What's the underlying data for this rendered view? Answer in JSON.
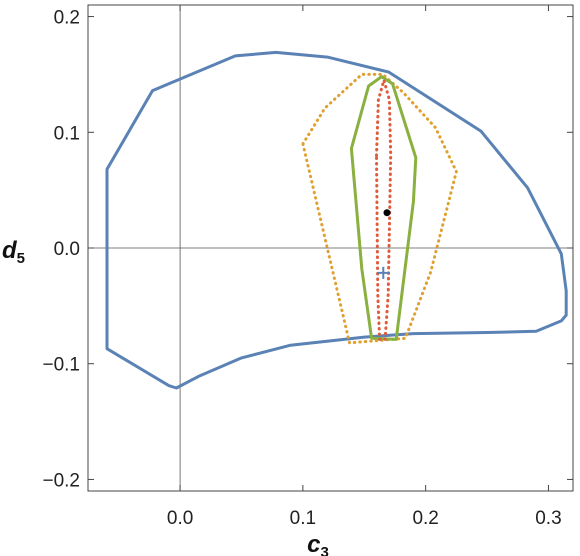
{
  "chart_data": {
    "type": "line",
    "title": "",
    "xlabel": "c",
    "xlabel_subscript": "3",
    "ylabel": "d",
    "ylabel_subscript": "5",
    "xlim": [
      -0.075,
      0.32
    ],
    "ylim": [
      -0.21,
      0.21
    ],
    "x_ticks": [
      0.0,
      0.1,
      0.2,
      0.3
    ],
    "x_tick_labels": [
      "0.0",
      "0.1",
      "0.2",
      "0.3"
    ],
    "y_ticks": [
      -0.2,
      -0.1,
      0.0,
      0.1,
      0.2
    ],
    "y_tick_labels": [
      "−0.2",
      "−0.1",
      "0.0",
      "0.1",
      "0.2"
    ],
    "grid": false,
    "legend": "none",
    "series": [
      {
        "style": "solid",
        "color": "#5a82b4",
        "closed": true,
        "points": [
          [
            -0.0595,
            0.068
          ],
          [
            -0.0225,
            0.136
          ],
          [
            0.045,
            0.166
          ],
          [
            0.078,
            0.169
          ],
          [
            0.12,
            0.165
          ],
          [
            0.17,
            0.152
          ],
          [
            0.245,
            0.101
          ],
          [
            0.283,
            0.052
          ],
          [
            0.3105,
            -0.005
          ],
          [
            0.3145,
            -0.037
          ],
          [
            0.3145,
            -0.058
          ],
          [
            0.3105,
            -0.063
          ],
          [
            0.29,
            -0.072
          ],
          [
            0.25,
            -0.073
          ],
          [
            0.19,
            -0.074
          ],
          [
            0.15,
            -0.077
          ],
          [
            0.09,
            -0.084
          ],
          [
            0.05,
            -0.095
          ],
          [
            0.015,
            -0.111
          ],
          [
            -0.003,
            -0.121
          ],
          [
            -0.009,
            -0.119
          ],
          [
            -0.0595,
            -0.087
          ]
        ]
      },
      {
        "style": "dotted",
        "color": "#e0a030",
        "closed": true,
        "points": [
          [
            0.1,
            0.09
          ],
          [
            0.118,
            0.121
          ],
          [
            0.148,
            0.15
          ],
          [
            0.165,
            0.15
          ],
          [
            0.182,
            0.134
          ],
          [
            0.208,
            0.104
          ],
          [
            0.225,
            0.066
          ],
          [
            0.204,
            -0.021
          ],
          [
            0.1835,
            -0.078
          ],
          [
            0.138,
            -0.082
          ],
          [
            0.1,
            0.09
          ]
        ]
      },
      {
        "style": "solid",
        "color": "#8ab040",
        "closed": true,
        "points": [
          [
            0.1395,
            0.086
          ],
          [
            0.1535,
            0.14
          ],
          [
            0.164,
            0.148
          ],
          [
            0.173,
            0.142
          ],
          [
            0.192,
            0.078
          ],
          [
            0.19,
            0.04
          ],
          [
            0.176,
            -0.079
          ],
          [
            0.156,
            -0.078
          ],
          [
            0.148,
            -0.018
          ],
          [
            0.1395,
            0.086
          ]
        ]
      },
      {
        "style": "dotted",
        "color": "#e05a3a",
        "closed": true,
        "points": [
          [
            0.16,
            0.08
          ],
          [
            0.1615,
            0.128
          ],
          [
            0.166,
            0.145
          ],
          [
            0.1705,
            0.128
          ],
          [
            0.1715,
            0.08
          ],
          [
            0.1695,
            -0.04
          ],
          [
            0.167,
            -0.079
          ],
          [
            0.1625,
            -0.079
          ],
          [
            0.161,
            -0.04
          ],
          [
            0.16,
            0.08
          ]
        ]
      }
    ],
    "markers": [
      {
        "shape": "dot",
        "color": "#000000",
        "x": 0.1685,
        "y": 0.0305
      },
      {
        "shape": "plus",
        "color": "#5a82b4",
        "x": 0.1655,
        "y": -0.0215
      }
    ]
  }
}
